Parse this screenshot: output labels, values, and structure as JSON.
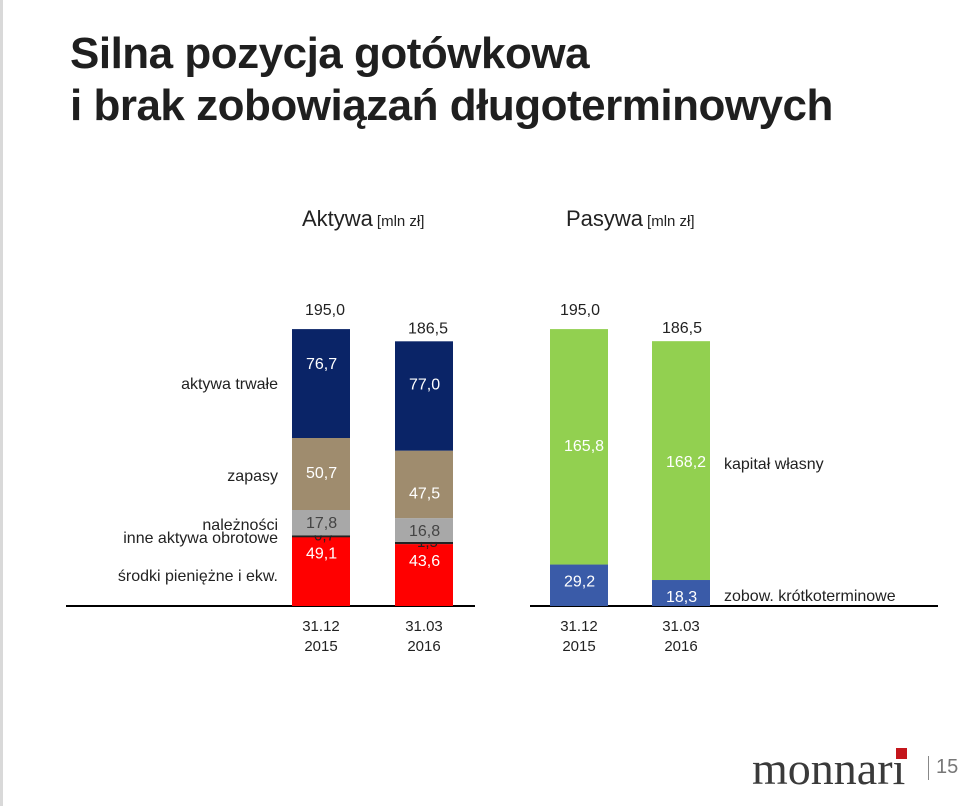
{
  "slide": {
    "title_line1": "Silna pozycja gotówkowa",
    "title_line2": "i brak zobowiązań długoterminowych",
    "page_number": "15",
    "logo_text": "monnari"
  },
  "colors": {
    "aktywa_trwale": "#0a2467",
    "zapasy": "#9f8c6e",
    "naleznosci": "#a8a8a8",
    "inne": "#222222",
    "srodki": "#ff0000",
    "kapital": "#92d050",
    "zobow": "#3a5ba8",
    "logo_accent": "#c4161c"
  },
  "chart_data": [
    {
      "type": "bar",
      "stacked": true,
      "title": "Aktywa",
      "unit": "[mln zł]",
      "categories": [
        {
          "date": "31.12",
          "year": "2015"
        },
        {
          "date": "31.03",
          "year": "2016"
        }
      ],
      "totals": [
        195.0,
        186.5
      ],
      "totals_labels": [
        "195,0",
        "186,5"
      ],
      "series": [
        {
          "name": "środki pieniężne i ekw.",
          "values": [
            49.1,
            43.6
          ],
          "labels": [
            "49,1",
            "43,6"
          ]
        },
        {
          "name": "inne aktywa obrotowe",
          "values": [
            0.7,
            1.5
          ],
          "labels": [
            "0,7",
            "1,5"
          ]
        },
        {
          "name": "należności",
          "values": [
            17.8,
            16.8
          ],
          "labels": [
            "17,8",
            "16,8"
          ]
        },
        {
          "name": "zapasy",
          "values": [
            50.7,
            47.5
          ],
          "labels": [
            "50,7",
            "47,5"
          ]
        },
        {
          "name": "aktywa trwałe",
          "values": [
            76.7,
            77.0
          ],
          "labels": [
            "76,7",
            "77,0"
          ]
        }
      ]
    },
    {
      "type": "bar",
      "stacked": true,
      "title": "Pasywa",
      "unit": "[mln zł]",
      "categories": [
        {
          "date": "31.12",
          "year": "2015"
        },
        {
          "date": "31.03",
          "year": "2016"
        }
      ],
      "totals": [
        195.0,
        186.5
      ],
      "totals_labels": [
        "195,0",
        "186,5"
      ],
      "series": [
        {
          "name": "zobow. krótkoterminowe",
          "values": [
            29.2,
            18.3
          ],
          "labels": [
            "29,2",
            "18,3"
          ]
        },
        {
          "name": "kapitał własny",
          "values": [
            165.8,
            168.2
          ],
          "labels": [
            "165,8",
            "168,2"
          ]
        }
      ]
    }
  ]
}
